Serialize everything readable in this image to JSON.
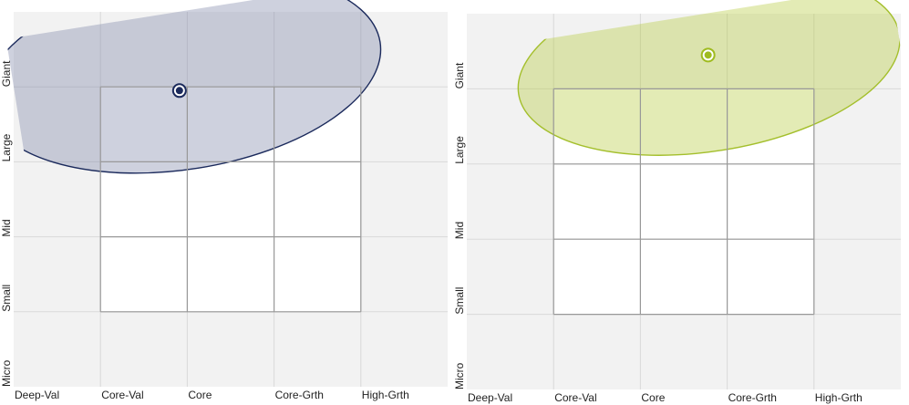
{
  "chart_data": [
    {
      "type": "scatter",
      "title": "",
      "subtitle": "",
      "xlabel": "",
      "ylabel": "",
      "x_tick_labels": [
        "Deep-Val",
        "Core-Val",
        "Core",
        "Core-Grth",
        "High-Grth"
      ],
      "y_tick_labels": [
        "Micro",
        "Small",
        "Mid",
        "Large",
        "Giant"
      ],
      "xlim": [
        0,
        5
      ],
      "ylim": [
        0,
        5
      ],
      "grid": true,
      "style_box": {
        "x": [
          1,
          4
        ],
        "y": [
          1,
          4
        ]
      },
      "colors": {
        "fill": "#7e86a8",
        "stroke": "#1b2a5c",
        "dot": "#1b2a5c"
      },
      "centroid": {
        "x": 1.91,
        "y": 3.95
      },
      "ownership_zone": {
        "cx": 1.95,
        "cy": 4.18,
        "rx": 2.3,
        "ry": 1.28,
        "rotation_deg": -9
      }
    },
    {
      "type": "scatter",
      "title": "",
      "subtitle": "",
      "xlabel": "",
      "ylabel": "",
      "x_tick_labels": [
        "Deep-Val",
        "Core-Val",
        "Core",
        "Core-Grth",
        "High-Grth"
      ],
      "y_tick_labels": [
        "Micro",
        "Small",
        "Mid",
        "Large",
        "Giant"
      ],
      "xlim": [
        0,
        5
      ],
      "ylim": [
        0,
        5
      ],
      "grid": true,
      "style_box": {
        "x": [
          1,
          4
        ],
        "y": [
          1,
          4
        ]
      },
      "colors": {
        "fill": "#b6cb3c",
        "stroke": "#a4bf2c",
        "dot": "#9fbb1f"
      },
      "centroid": {
        "x": 2.78,
        "y": 4.45
      },
      "ownership_zone": {
        "cx": 2.79,
        "cy": 4.33,
        "rx": 2.22,
        "ry": 1.16,
        "rotation_deg": -9
      }
    }
  ]
}
